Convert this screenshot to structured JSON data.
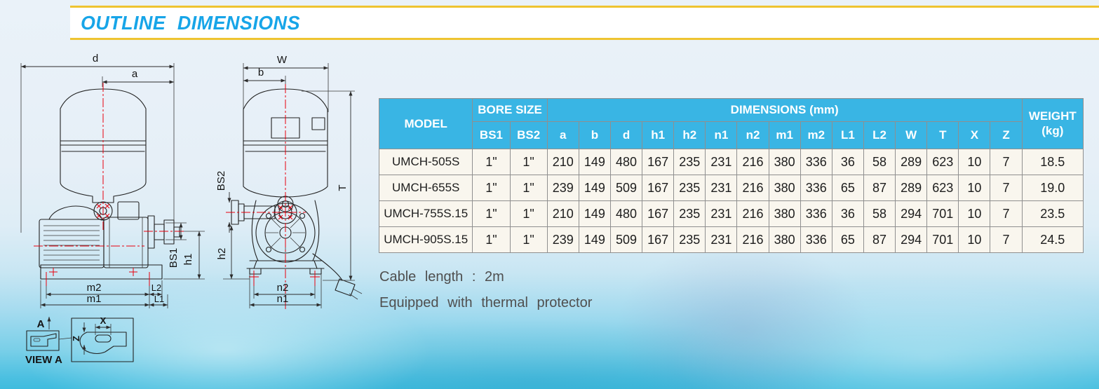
{
  "title": "OUTLINE DIMENSIONS",
  "table": {
    "header": {
      "model": "MODEL",
      "bore_size": "BORE SIZE",
      "dimensions": "DIMENSIONS (mm)",
      "weight_line1": "WEIGHT",
      "weight_line2": "(kg)"
    },
    "sub_headers": [
      "BS1",
      "BS2",
      "a",
      "b",
      "d",
      "h1",
      "h2",
      "n1",
      "n2",
      "m1",
      "m2",
      "L1",
      "L2",
      "W",
      "T",
      "X",
      "Z"
    ],
    "rows": [
      [
        "UMCH-505S",
        "1\"",
        "1\"",
        "210",
        "149",
        "480",
        "167",
        "235",
        "231",
        "216",
        "380",
        "336",
        "36",
        "58",
        "289",
        "623",
        "10",
        "7",
        "18.5"
      ],
      [
        "UMCH-655S",
        "1\"",
        "1\"",
        "239",
        "149",
        "509",
        "167",
        "235",
        "231",
        "216",
        "380",
        "336",
        "65",
        "87",
        "289",
        "623",
        "10",
        "7",
        "19.0"
      ],
      [
        "UMCH-755S.15",
        "1\"",
        "1\"",
        "210",
        "149",
        "480",
        "167",
        "235",
        "231",
        "216",
        "380",
        "336",
        "36",
        "58",
        "294",
        "701",
        "10",
        "7",
        "23.5"
      ],
      [
        "UMCH-905S.15",
        "1\"",
        "1\"",
        "239",
        "149",
        "509",
        "167",
        "235",
        "231",
        "216",
        "380",
        "336",
        "65",
        "87",
        "294",
        "701",
        "10",
        "7",
        "24.5"
      ]
    ]
  },
  "notes": [
    "Cable length : 2m",
    "Equipped with thermal protector"
  ],
  "drawing": {
    "labels": {
      "d": "d",
      "a": "a",
      "W": "W",
      "b": "b",
      "BS1": "BS1",
      "BS2": "BS2",
      "h1": "h1",
      "h2": "h2",
      "T": "T",
      "m1": "m1",
      "m2": "m2",
      "L1": "L1",
      "L2": "L2",
      "n1": "n1",
      "n2": "n2",
      "X": "X",
      "Z": "Z",
      "A": "A",
      "view_a": "VIEW A"
    }
  },
  "colors": {
    "accent_yellow": "#eec431",
    "title_blue": "#17a5e8",
    "table_header_bg": "#39b5e4",
    "table_cell_bg": "#f9f6ee",
    "centerline_red": "#e8000d"
  }
}
